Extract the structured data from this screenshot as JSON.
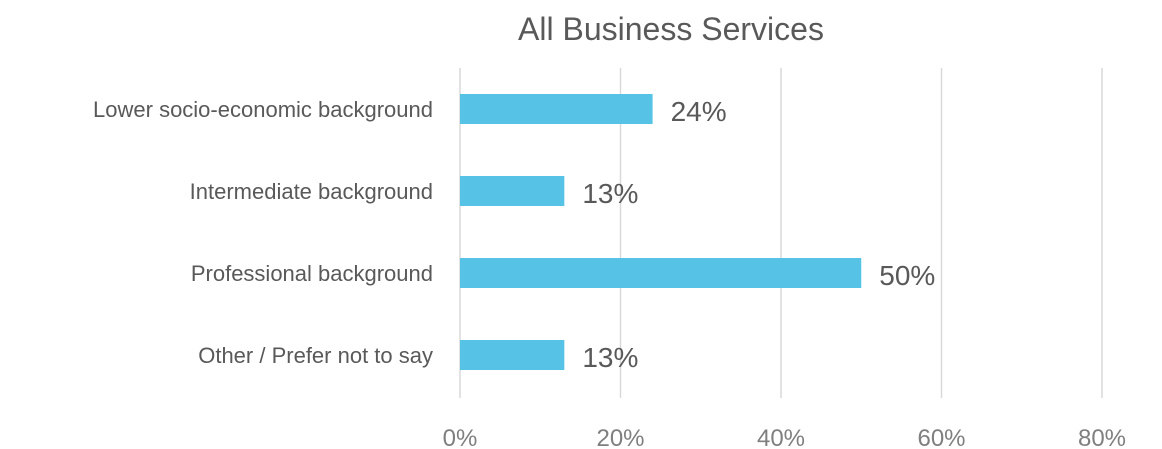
{
  "chart_data": {
    "type": "bar",
    "orientation": "horizontal",
    "title": "All Business Services",
    "categories": [
      "Lower socio-economic background",
      "Intermediate background",
      "Professional background",
      "Other / Prefer not to say"
    ],
    "values": [
      24,
      13,
      50,
      13
    ],
    "data_labels": [
      "24%",
      "13%",
      "50%",
      "13%"
    ],
    "xlim": [
      0,
      80
    ],
    "x_ticks": [
      0,
      20,
      40,
      60,
      80
    ],
    "x_tick_labels": [
      "0%",
      "20%",
      "40%",
      "60%",
      "80%"
    ],
    "grid": true,
    "legend": "none",
    "bar_color": "#56c3e6"
  }
}
